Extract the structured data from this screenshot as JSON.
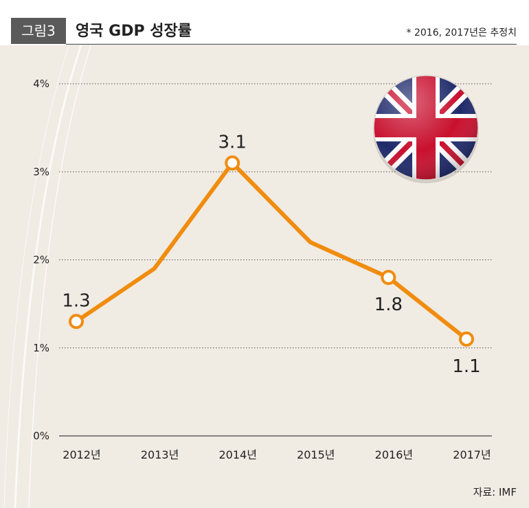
{
  "header": {
    "figure_label": "그림3",
    "title": "영국 GDP 성장률",
    "note": "* 2016, 2017년은 추정치"
  },
  "source": "자료: IMF",
  "flag_icon": "uk-flag-icon",
  "colors": {
    "line": "#F08C0E",
    "background": "#F0EBE3",
    "badge": "#5A5A5A"
  },
  "chart_data": {
    "type": "line",
    "title": "영국 GDP 성장률",
    "categories": [
      "2012년",
      "2013년",
      "2014년",
      "2015년",
      "2016년",
      "2017년"
    ],
    "values": [
      1.3,
      1.9,
      3.1,
      2.2,
      1.8,
      1.1
    ],
    "marked": [
      true,
      false,
      true,
      false,
      true,
      true
    ],
    "data_labels": [
      "1.3",
      "",
      "3.1",
      "",
      "1.8",
      "1.1"
    ],
    "y_ticks": [
      0,
      1,
      2,
      3,
      4
    ],
    "y_tick_labels": [
      "0%",
      "1%",
      "2%",
      "3%",
      "4%"
    ],
    "ylim": [
      0,
      4
    ],
    "grid": true
  }
}
